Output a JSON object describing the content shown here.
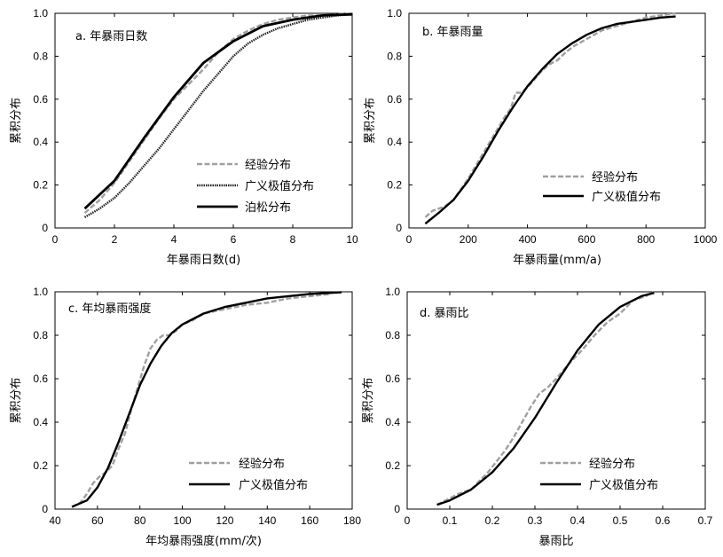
{
  "chart_data": [
    {
      "id": "a",
      "type": "line",
      "title": "a. 年暴雨日数",
      "xlabel": "年暴雨日数(d)",
      "ylabel": "累积分布",
      "xlim": [
        0,
        10
      ],
      "ylim": [
        0,
        1.0
      ],
      "xticks": [
        0,
        2,
        4,
        6,
        8,
        10
      ],
      "xtick_labels": [
        "0",
        "2",
        "4",
        "6",
        "8",
        "10"
      ],
      "yticks": [
        0,
        0.2,
        0.4,
        0.6,
        0.8,
        1.0
      ],
      "ytick_labels": [
        "0",
        "0.2",
        "0.4",
        "0.6",
        "0.8",
        "1.0"
      ],
      "legend_position": "bottom-right",
      "series": [
        {
          "name": "经验分布",
          "style": "empirical",
          "color": "#a0a0a0",
          "x": [
            1,
            1.5,
            2,
            2.5,
            3,
            3.5,
            4,
            4.5,
            5,
            5.5,
            6,
            6.5,
            7,
            7.5,
            8,
            8.5,
            9,
            9.5,
            10
          ],
          "y": [
            0.07,
            0.13,
            0.21,
            0.31,
            0.41,
            0.51,
            0.6,
            0.67,
            0.74,
            0.82,
            0.88,
            0.92,
            0.95,
            0.97,
            0.98,
            0.99,
            0.99,
            0.995,
            1.0
          ]
        },
        {
          "name": "广义极值分布",
          "style": "gev",
          "color": "#222222",
          "x": [
            1,
            1.5,
            2,
            2.5,
            3,
            3.5,
            4,
            4.5,
            5,
            5.5,
            6,
            6.5,
            7,
            7.5,
            8,
            8.5,
            9,
            9.5,
            10
          ],
          "y": [
            0.05,
            0.09,
            0.14,
            0.21,
            0.29,
            0.37,
            0.46,
            0.55,
            0.64,
            0.72,
            0.8,
            0.86,
            0.9,
            0.93,
            0.95,
            0.97,
            0.98,
            0.99,
            0.995
          ]
        },
        {
          "name": "泊松分布",
          "style": "poisson",
          "color": "#000000",
          "x": [
            1,
            2,
            3,
            4,
            5,
            6,
            7,
            8,
            9,
            10
          ],
          "y": [
            0.09,
            0.22,
            0.42,
            0.61,
            0.77,
            0.87,
            0.94,
            0.97,
            0.99,
            0.995
          ]
        }
      ]
    },
    {
      "id": "b",
      "type": "line",
      "title": "b. 年暴雨量",
      "xlabel": "年暴雨量(mm/a)",
      "ylabel": "累积分布",
      "xlim": [
        0,
        1000
      ],
      "ylim": [
        0,
        1.0
      ],
      "xticks": [
        0,
        200,
        400,
        600,
        800,
        1000
      ],
      "xtick_labels": [
        "0",
        "200",
        "400",
        "600",
        "800",
        "1000"
      ],
      "yticks": [
        0,
        0.2,
        0.4,
        0.6,
        0.8,
        1.0
      ],
      "ytick_labels": [
        "0",
        "0.2",
        "0.4",
        "0.6",
        "0.8",
        "1.0"
      ],
      "legend_position": "bottom-right",
      "series": [
        {
          "name": "经验分布",
          "style": "empirical",
          "color": "#a0a0a0",
          "x": [
            55,
            80,
            120,
            150,
            180,
            200,
            230,
            260,
            290,
            320,
            345,
            360,
            380,
            410,
            440,
            470,
            500,
            530,
            560,
            600,
            650,
            700,
            750,
            800,
            850,
            900
          ],
          "y": [
            0.05,
            0.08,
            0.1,
            0.13,
            0.19,
            0.23,
            0.3,
            0.37,
            0.44,
            0.51,
            0.56,
            0.63,
            0.63,
            0.67,
            0.72,
            0.76,
            0.78,
            0.82,
            0.85,
            0.88,
            0.92,
            0.94,
            0.96,
            0.98,
            0.99,
            1.0
          ]
        },
        {
          "name": "广义极值分布",
          "style": "gev",
          "color": "#000000",
          "x": [
            55,
            100,
            150,
            200,
            250,
            300,
            350,
            400,
            450,
            500,
            550,
            600,
            650,
            700,
            750,
            800,
            850,
            900
          ],
          "y": [
            0.02,
            0.07,
            0.13,
            0.22,
            0.33,
            0.45,
            0.56,
            0.66,
            0.74,
            0.81,
            0.86,
            0.9,
            0.93,
            0.95,
            0.96,
            0.97,
            0.98,
            0.985
          ]
        }
      ]
    },
    {
      "id": "c",
      "type": "line",
      "title": "c. 年均暴雨强度",
      "xlabel": "年均暴雨强度(mm/次)",
      "ylabel": "累积分布",
      "xlim": [
        40,
        180
      ],
      "ylim": [
        0,
        1.0
      ],
      "xticks": [
        40,
        60,
        80,
        100,
        120,
        140,
        160,
        180
      ],
      "xtick_labels": [
        "40",
        "60",
        "80",
        "100",
        "120",
        "140",
        "160",
        "180"
      ],
      "yticks": [
        0,
        0.2,
        0.4,
        0.6,
        0.8,
        1.0
      ],
      "ytick_labels": [
        "0",
        "0.2",
        "0.4",
        "0.6",
        "0.8",
        "1.0"
      ],
      "legend_position": "bottom-right",
      "series": [
        {
          "name": "经验分布",
          "style": "empirical",
          "color": "#a0a0a0",
          "x": [
            48,
            52,
            55,
            58,
            61,
            64,
            67,
            70,
            73,
            76,
            79,
            82,
            85,
            88,
            91,
            94,
            97,
            100,
            105,
            110,
            115,
            120,
            130,
            140,
            150,
            160,
            170
          ],
          "y": [
            0.01,
            0.03,
            0.07,
            0.12,
            0.15,
            0.17,
            0.2,
            0.28,
            0.35,
            0.46,
            0.56,
            0.66,
            0.74,
            0.78,
            0.8,
            0.8,
            0.82,
            0.85,
            0.87,
            0.9,
            0.91,
            0.92,
            0.94,
            0.95,
            0.97,
            0.98,
            0.99
          ]
        },
        {
          "name": "广义极值分布",
          "style": "gev",
          "color": "#000000",
          "x": [
            48,
            55,
            60,
            65,
            70,
            75,
            80,
            85,
            90,
            95,
            100,
            110,
            120,
            130,
            140,
            150,
            160,
            170,
            175
          ],
          "y": [
            0.01,
            0.04,
            0.1,
            0.19,
            0.31,
            0.44,
            0.57,
            0.67,
            0.75,
            0.81,
            0.85,
            0.9,
            0.93,
            0.95,
            0.97,
            0.98,
            0.99,
            0.995,
            0.998
          ]
        }
      ]
    },
    {
      "id": "d",
      "type": "line",
      "title": "d. 暴雨比",
      "xlabel": "暴雨比",
      "ylabel": "累积分布",
      "xlim": [
        0,
        0.7
      ],
      "ylim": [
        0,
        1.0
      ],
      "xticks": [
        0,
        0.1,
        0.2,
        0.3,
        0.4,
        0.5,
        0.6,
        0.7
      ],
      "xtick_labels": [
        "0",
        "0.1",
        "0.2",
        "0.3",
        "0.4",
        "0.5",
        "0.6",
        "0.7"
      ],
      "yticks": [
        0,
        0.2,
        0.4,
        0.6,
        0.8,
        1.0
      ],
      "ytick_labels": [
        "0",
        "0.2",
        "0.4",
        "0.6",
        "0.8",
        "1.0"
      ],
      "legend_position": "bottom-right",
      "series": [
        {
          "name": "经验分布",
          "style": "empirical",
          "color": "#a0a0a0",
          "x": [
            0.07,
            0.1,
            0.12,
            0.15,
            0.17,
            0.19,
            0.21,
            0.23,
            0.25,
            0.27,
            0.29,
            0.31,
            0.33,
            0.35,
            0.38,
            0.41,
            0.44,
            0.47,
            0.5,
            0.53,
            0.56,
            0.58
          ],
          "y": [
            0.02,
            0.05,
            0.07,
            0.09,
            0.13,
            0.17,
            0.22,
            0.27,
            0.33,
            0.4,
            0.47,
            0.53,
            0.56,
            0.6,
            0.67,
            0.73,
            0.8,
            0.86,
            0.9,
            0.96,
            0.98,
            1.0
          ]
        },
        {
          "name": "广义极值分布",
          "style": "gev",
          "color": "#000000",
          "x": [
            0.07,
            0.1,
            0.15,
            0.2,
            0.25,
            0.3,
            0.35,
            0.4,
            0.45,
            0.5,
            0.55,
            0.58
          ],
          "y": [
            0.02,
            0.04,
            0.09,
            0.17,
            0.28,
            0.42,
            0.58,
            0.73,
            0.85,
            0.93,
            0.98,
            0.995
          ]
        }
      ]
    }
  ]
}
